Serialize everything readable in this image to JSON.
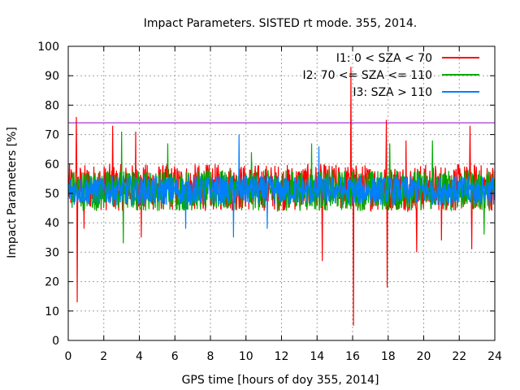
{
  "chart_data": {
    "type": "line",
    "title": "Impact Parameters. SISTED rt mode. 355, 2014.",
    "xlabel": "GPS time [hours of doy 355, 2014]",
    "ylabel": "Impact Parameters [%]",
    "xlim": [
      0,
      24
    ],
    "ylim": [
      0,
      100
    ],
    "x_ticks": [
      0,
      2,
      4,
      6,
      8,
      10,
      12,
      14,
      16,
      18,
      20,
      22,
      24
    ],
    "y_ticks": [
      0,
      10,
      20,
      30,
      40,
      50,
      60,
      70,
      80,
      90,
      100
    ],
    "grid": true,
    "legend_position": "top-right",
    "threshold_line": {
      "value": 74,
      "color": "#9400d3"
    },
    "series": [
      {
        "name": "I1: 0 < SZA < 70",
        "color": "#ff0000",
        "baseline": 52,
        "spread": 8,
        "spikes": [
          {
            "x": 0.45,
            "y": 76
          },
          {
            "x": 0.5,
            "y": 13
          },
          {
            "x": 0.9,
            "y": 38
          },
          {
            "x": 2.5,
            "y": 73
          },
          {
            "x": 3.8,
            "y": 71
          },
          {
            "x": 4.1,
            "y": 35
          },
          {
            "x": 14.3,
            "y": 27
          },
          {
            "x": 15.9,
            "y": 93
          },
          {
            "x": 16.05,
            "y": 5
          },
          {
            "x": 17.9,
            "y": 75
          },
          {
            "x": 17.95,
            "y": 18
          },
          {
            "x": 19.0,
            "y": 68
          },
          {
            "x": 19.6,
            "y": 30
          },
          {
            "x": 21.0,
            "y": 34
          },
          {
            "x": 22.6,
            "y": 73
          },
          {
            "x": 22.7,
            "y": 31
          }
        ]
      },
      {
        "name": "I2: 70 <= SZA <= 110",
        "color": "#00aa00",
        "baseline": 51,
        "spread": 7,
        "spikes": [
          {
            "x": 3.1,
            "y": 33
          },
          {
            "x": 3.0,
            "y": 71
          },
          {
            "x": 5.6,
            "y": 67
          },
          {
            "x": 10.3,
            "y": 64
          },
          {
            "x": 13.7,
            "y": 67
          },
          {
            "x": 18.1,
            "y": 67
          },
          {
            "x": 20.5,
            "y": 68
          },
          {
            "x": 23.4,
            "y": 36
          }
        ]
      },
      {
        "name": "I3: SZA > 110",
        "color": "#0080ff",
        "baseline": 51,
        "spread": 5,
        "spikes": [
          {
            "x": 9.3,
            "y": 35
          },
          {
            "x": 9.6,
            "y": 70
          },
          {
            "x": 11.2,
            "y": 38
          },
          {
            "x": 14.1,
            "y": 66
          },
          {
            "x": 6.6,
            "y": 38
          }
        ]
      }
    ]
  }
}
